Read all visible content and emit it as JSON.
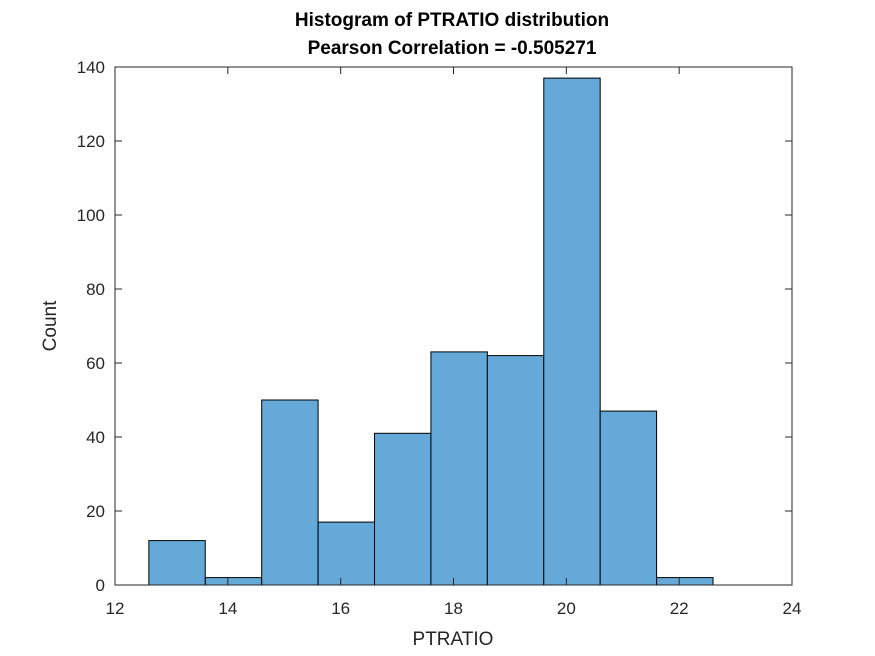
{
  "chart_data": {
    "type": "bar",
    "title": "Histogram of PTRATIO distribution",
    "subtitle": "Pearson Correlation = -0.505271",
    "xlabel": "PTRATIO",
    "ylabel": "Count",
    "xlim": [
      12,
      24
    ],
    "ylim": [
      0,
      140
    ],
    "xticks": [
      12,
      14,
      16,
      18,
      20,
      22,
      24
    ],
    "yticks": [
      0,
      20,
      40,
      60,
      80,
      100,
      120,
      140
    ],
    "bins": [
      {
        "start": 12.6,
        "end": 13.6,
        "count": 12
      },
      {
        "start": 13.6,
        "end": 14.6,
        "count": 2
      },
      {
        "start": 14.6,
        "end": 15.6,
        "count": 50
      },
      {
        "start": 15.6,
        "end": 16.6,
        "count": 17
      },
      {
        "start": 16.6,
        "end": 17.6,
        "count": 41
      },
      {
        "start": 17.6,
        "end": 18.6,
        "count": 63
      },
      {
        "start": 18.6,
        "end": 19.6,
        "count": 62
      },
      {
        "start": 19.6,
        "end": 20.6,
        "count": 137
      },
      {
        "start": 20.6,
        "end": 21.6,
        "count": 47
      },
      {
        "start": 21.6,
        "end": 22.6,
        "count": 2
      }
    ],
    "bar_color": "#64a9d8",
    "edge_color": "#000000",
    "grid": false,
    "legend": "none"
  }
}
